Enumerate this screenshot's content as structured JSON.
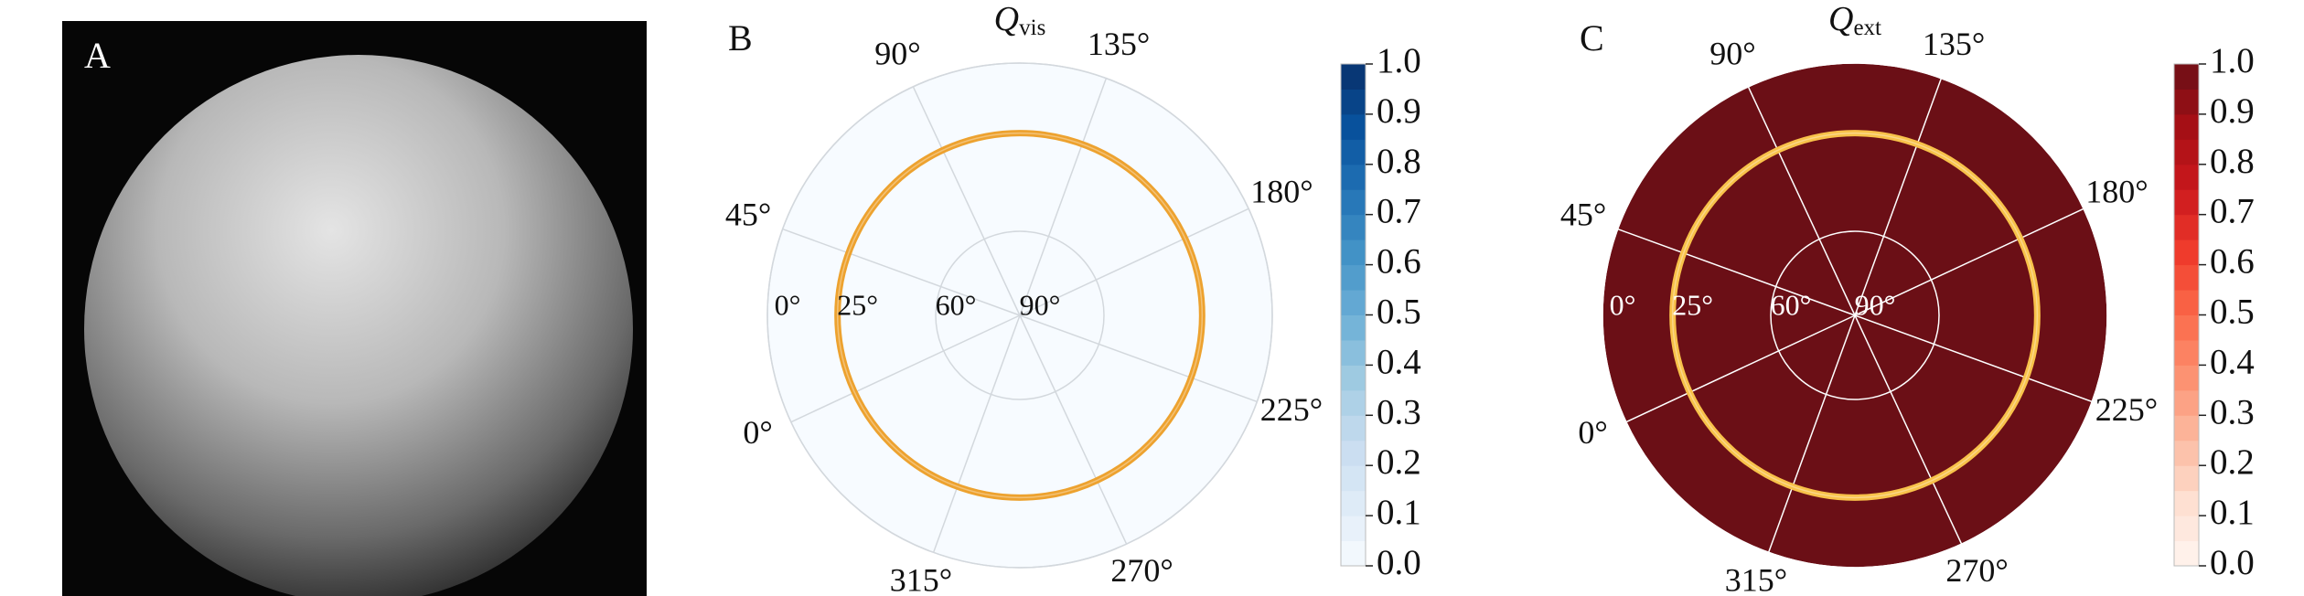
{
  "image_panel": {
    "label": "A"
  },
  "chart_data": [
    {
      "type": "polar-field",
      "panel": "B",
      "title": "Q",
      "title_sub": "vis",
      "value": 0,
      "clim": [
        0,
        1
      ],
      "cmap": [
        "#f7fbff",
        "#deebf7",
        "#c6dbef",
        "#9ecae1",
        "#6baed6",
        "#4292c6",
        "#2171b5",
        "#08519c",
        "#08306b"
      ],
      "colorbar_ticks": [
        {
          "value": 0,
          "label": "0.0"
        },
        0.1,
        0.2,
        0.3,
        0.4,
        0.5,
        0.6,
        0.7,
        0.8,
        0.9,
        {
          "value": 1,
          "label": "1.0"
        }
      ],
      "rlim": [
        90,
        0
      ],
      "rticks": [
        {
          "value": 0,
          "label": "0°"
        },
        {
          "value": 25,
          "label": "25°"
        },
        {
          "value": 60,
          "label": "60°"
        },
        {
          "value": 90,
          "label": "90°"
        }
      ],
      "thetaticks": [
        {
          "value": 0,
          "label": "0°"
        },
        {
          "value": 45,
          "label": "45°"
        },
        {
          "value": 90,
          "label": "90°"
        },
        {
          "value": 135,
          "label": "135°"
        },
        {
          "value": 180,
          "label": "180°"
        },
        {
          "value": 225,
          "label": "225°"
        },
        {
          "value": 270,
          "label": "270°"
        },
        {
          "value": 315,
          "label": "315°"
        }
      ],
      "ring_elevation": 25,
      "ring_color": "#eda22f",
      "grid_color": "#d3d8dd",
      "rlabel_color": "#111111"
    },
    {
      "type": "polar-field",
      "panel": "C",
      "title": "Q",
      "title_sub": "ext",
      "value": 1,
      "clim": [
        0,
        1
      ],
      "cmap": [
        "#fff5f0",
        "#fee0d2",
        "#fcbba1",
        "#fc9272",
        "#fb6a4a",
        "#ef3b2c",
        "#cb181d",
        "#a50f15",
        "#6b0f16"
      ],
      "colorbar_ticks": [
        {
          "value": 0,
          "label": "0.0"
        },
        0.1,
        0.2,
        0.3,
        0.4,
        0.5,
        0.6,
        0.7,
        0.8,
        0.9,
        {
          "value": 1,
          "label": "1.0"
        }
      ],
      "rlim": [
        90,
        0
      ],
      "rticks": [
        {
          "value": 0,
          "label": "0°"
        },
        {
          "value": 25,
          "label": "25°"
        },
        {
          "value": 60,
          "label": "60°"
        },
        {
          "value": 90,
          "label": "90°"
        }
      ],
      "thetaticks": [
        {
          "value": 0,
          "label": "0°"
        },
        {
          "value": 45,
          "label": "45°"
        },
        {
          "value": 90,
          "label": "90°"
        },
        {
          "value": 135,
          "label": "135°"
        },
        {
          "value": 180,
          "label": "180°"
        },
        {
          "value": 225,
          "label": "225°"
        },
        {
          "value": 270,
          "label": "270°"
        },
        {
          "value": 315,
          "label": "315°"
        }
      ],
      "ring_elevation": 25,
      "ring_color": "#f8c24a",
      "grid_color": "#ffffff",
      "rlabel_color": "#ffffff"
    }
  ]
}
